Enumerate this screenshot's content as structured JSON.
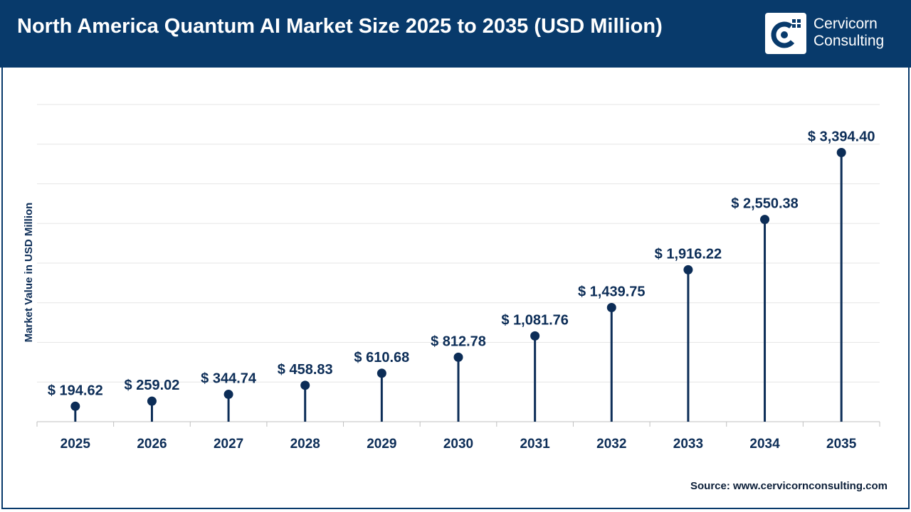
{
  "header": {
    "title": "North America Quantum AI Market Size 2025 to 2035 (USD Million)",
    "logo": {
      "line1": "Cervicorn",
      "line2": "Consulting"
    }
  },
  "source": "Source: www.cervicornconsulting.com",
  "colors": {
    "header": "#083a6b",
    "series": "#0c2d57",
    "grid": "#e6e6e6",
    "axis": "#bfbfbf"
  },
  "chart_data": {
    "type": "lollipop",
    "categories": [
      "2025",
      "2026",
      "2027",
      "2028",
      "2029",
      "2030",
      "2031",
      "2032",
      "2033",
      "2034",
      "2035"
    ],
    "values": [
      194.62,
      259.02,
      344.74,
      458.83,
      610.68,
      812.78,
      1081.76,
      1439.75,
      1916.22,
      2550.38,
      3394.4
    ],
    "data_labels": [
      "$ 194.62",
      "$ 259.02",
      "$ 344.74",
      "$ 458.83",
      "$ 610.68",
      "$ 812.78",
      "$ 1,081.76",
      "$ 1,439.75",
      "$ 1,916.22",
      "$ 2,550.38",
      "$ 3,394.40"
    ],
    "ylabel": "Market Value in USD Million",
    "xlabel": "",
    "ylim": [
      0,
      4000
    ],
    "y_gridlines": 8,
    "grid": true,
    "legend": "none"
  }
}
